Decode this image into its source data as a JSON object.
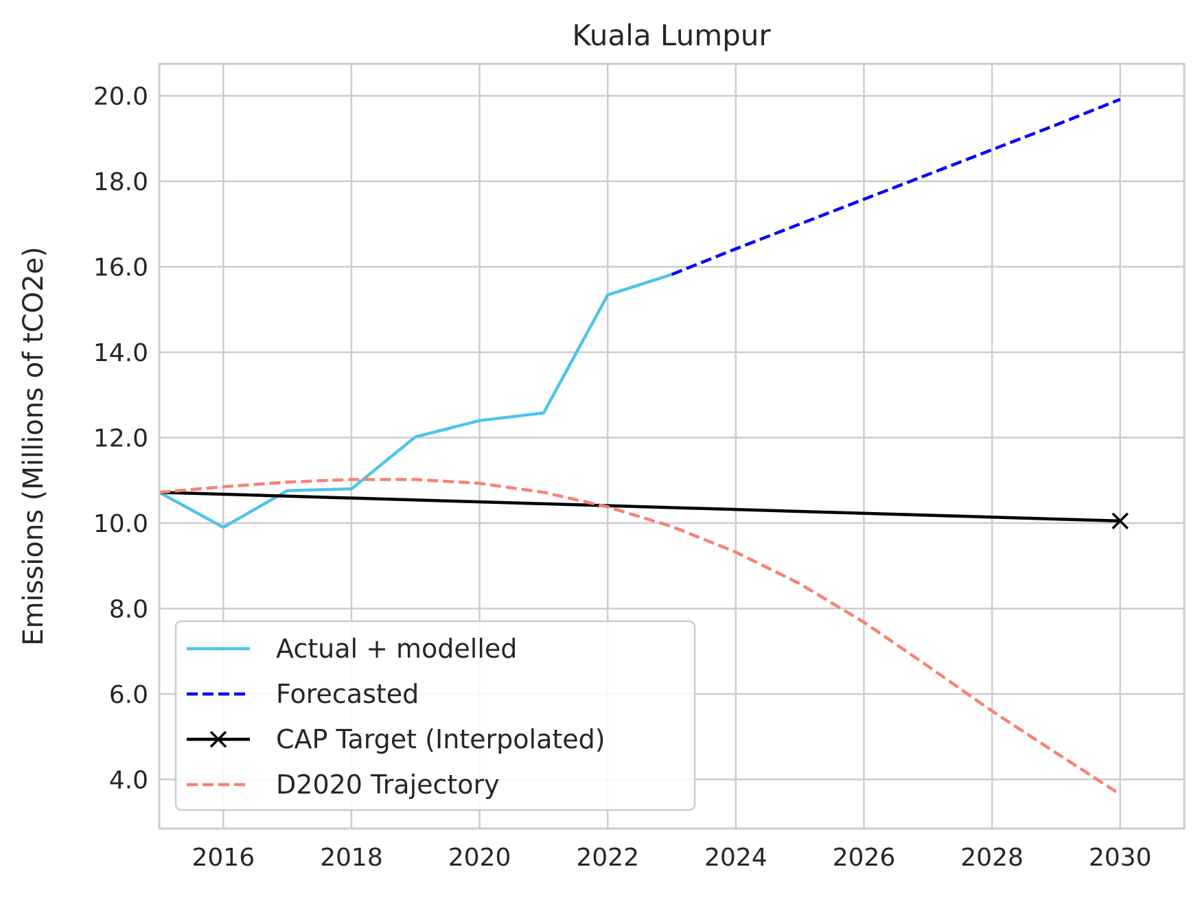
{
  "chart_data": {
    "type": "line",
    "title": "Kuala Lumpur",
    "xlabel": "",
    "ylabel": "Emissions (Millions of tCO2e)",
    "xlim": [
      2015,
      2031
    ],
    "ylim": [
      2.85,
      20.75
    ],
    "x_ticks": [
      "2016",
      "2018",
      "2020",
      "2022",
      "2024",
      "2026",
      "2028",
      "2030"
    ],
    "x_tick_values": [
      2016,
      2018,
      2020,
      2022,
      2024,
      2026,
      2028,
      2030
    ],
    "y_ticks": [
      "4.0",
      "6.0",
      "8.0",
      "10.0",
      "12.0",
      "14.0",
      "16.0",
      "18.0",
      "20.0"
    ],
    "y_tick_values": [
      4,
      6,
      8,
      10,
      12,
      14,
      16,
      18,
      20
    ],
    "grid": true,
    "legend_position": "lower-left",
    "series": [
      {
        "name": "Actual + modelled",
        "color": "#4FC3EB",
        "style": "solid",
        "x": [
          2015,
          2016,
          2017,
          2018,
          2019,
          2020,
          2021,
          2022,
          2023
        ],
        "y": [
          10.72,
          9.9,
          10.76,
          10.8,
          12.02,
          12.4,
          12.58,
          15.34,
          15.82
        ]
      },
      {
        "name": "Forecasted",
        "color": "#0000FF",
        "style": "dashed",
        "x": [
          2023,
          2024,
          2025,
          2026,
          2027,
          2028,
          2029,
          2030
        ],
        "y": [
          15.82,
          16.42,
          17.0,
          17.58,
          18.16,
          18.74,
          19.32,
          19.92
        ]
      },
      {
        "name": "CAP Target (Interpolated)",
        "color": "#000000",
        "style": "solid",
        "marker": "x",
        "marker_x": [
          2030
        ],
        "x": [
          2015,
          2030
        ],
        "y": [
          10.72,
          10.05
        ]
      },
      {
        "name": "D2020 Trajectory",
        "color": "#FA8072",
        "style": "dashed",
        "x": [
          2015,
          2016,
          2017,
          2018,
          2019,
          2020,
          2021,
          2022,
          2023,
          2024,
          2025,
          2026,
          2027,
          2028,
          2029,
          2030
        ],
        "y": [
          10.72,
          10.85,
          10.96,
          11.02,
          11.02,
          10.93,
          10.72,
          10.38,
          9.92,
          9.32,
          8.58,
          7.68,
          6.65,
          5.6,
          4.62,
          3.65
        ]
      }
    ]
  }
}
